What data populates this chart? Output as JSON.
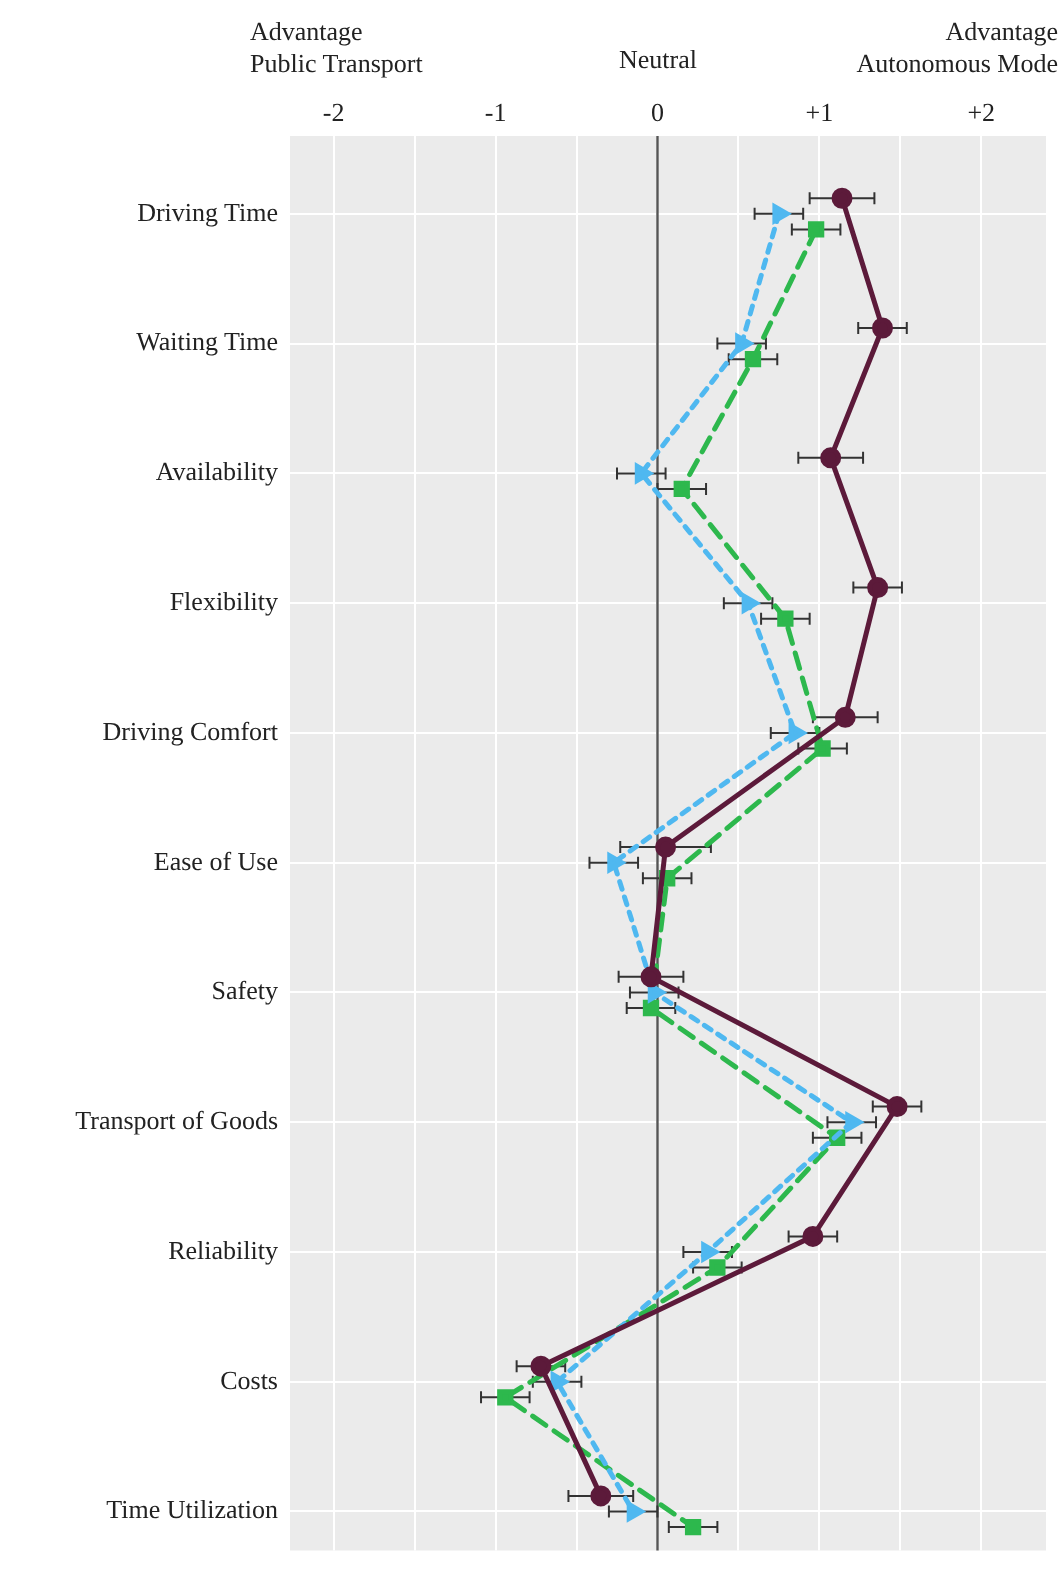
{
  "chart_data": {
    "type": "line",
    "orientation": "horizontal",
    "categories": [
      "Driving Time",
      "Waiting Time",
      "Availability",
      "Flexibility",
      "Driving Comfort",
      "Ease of Use",
      "Safety",
      "Transport of Goods",
      "Reliability",
      "Costs",
      "Time Utilization"
    ],
    "series": [
      {
        "color": "#5c1a3a",
        "marker": "circle",
        "line_style": "solid",
        "values": [
          1.14,
          1.39,
          1.07,
          1.36,
          1.16,
          0.05,
          -0.04,
          1.48,
          0.96,
          -0.72,
          -0.35
        ],
        "errors": [
          0.2,
          0.15,
          0.2,
          0.15,
          0.2,
          0.28,
          0.2,
          0.15,
          0.15,
          0.15,
          0.2
        ]
      },
      {
        "color": "#4fb8f0",
        "marker": "triangle",
        "line_style": "dotted",
        "values": [
          0.75,
          0.52,
          -0.1,
          0.56,
          0.85,
          -0.27,
          -0.02,
          1.2,
          0.31,
          -0.62,
          -0.15
        ],
        "errors": [
          0.15,
          0.15,
          0.15,
          0.15,
          0.15,
          0.15,
          0.15,
          0.15,
          0.15,
          0.15,
          0.15
        ]
      },
      {
        "color": "#2db84d",
        "marker": "square",
        "line_style": "dashed",
        "values": [
          0.98,
          0.59,
          0.15,
          0.79,
          1.02,
          0.06,
          -0.04,
          1.11,
          0.37,
          -0.94,
          0.22
        ],
        "errors": [
          0.15,
          0.15,
          0.15,
          0.15,
          0.15,
          0.15,
          0.15,
          0.15,
          0.15,
          0.15,
          0.15
        ]
      }
    ],
    "xlim": [
      -2.27,
      2.4
    ],
    "xticks": [
      -2,
      {
        "value": -1.5,
        "label": null
      },
      -1,
      {
        "value": -0.5,
        "label": null
      },
      0,
      {
        "value": 0.5,
        "label": null
      },
      {
        "value": 1,
        "label": "+1"
      },
      {
        "value": 1.5,
        "label": null
      },
      {
        "value": 2,
        "label": "+2"
      }
    ],
    "ref_lines": [
      {
        "axis": "x",
        "value": 0,
        "color": "#555555"
      }
    ],
    "annotations": [
      "Advantage\nPublic Transport",
      "Neutral",
      "Advantage\nAutonomous Mode"
    ],
    "grid": true,
    "legend": false
  }
}
